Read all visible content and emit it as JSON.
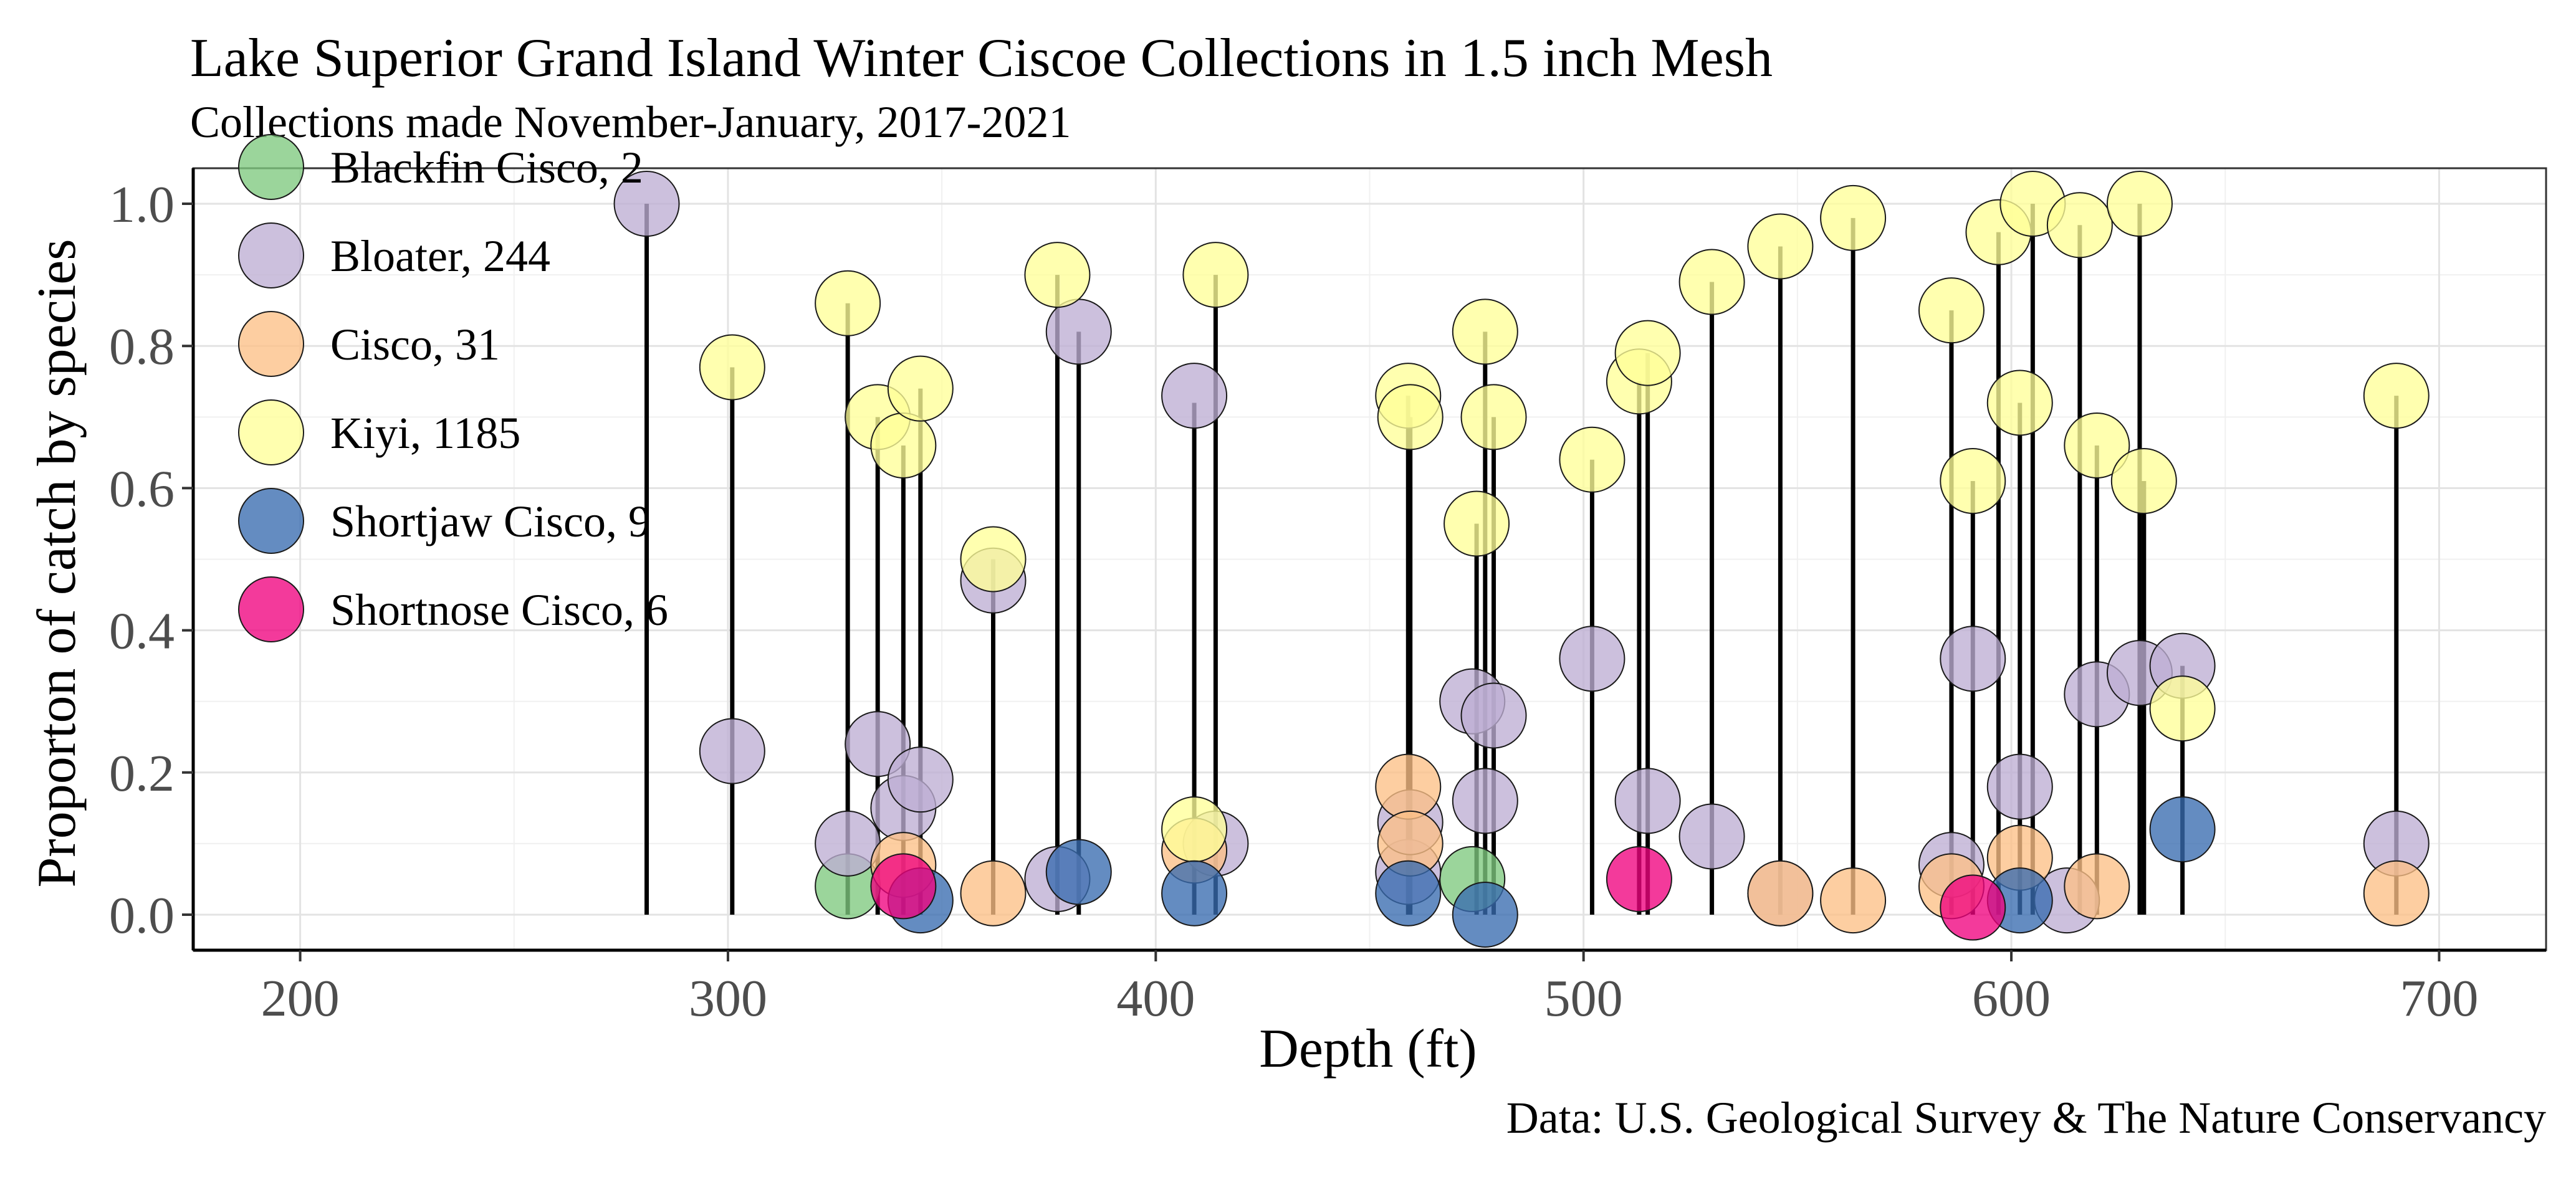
{
  "chart_data": {
    "type": "scatter",
    "title": "Lake Superior Grand Island Winter Ciscoe Collections in 1.5 inch Mesh",
    "subtitle": "Collections made November-January, 2017-2021",
    "xlabel": "Depth (ft)",
    "ylabel": "Proporton of catch by species",
    "caption": "Data: U.S. Geological Survey & The Nature Conservancy",
    "xlim": [
      175,
      725
    ],
    "ylim": [
      -0.05,
      1.05
    ],
    "x_ticks": [
      200,
      300,
      400,
      500,
      600,
      700
    ],
    "x_tick_labels": [
      "200",
      "300",
      "400",
      "500",
      "600",
      "700"
    ],
    "y_ticks": [
      0.0,
      0.2,
      0.4,
      0.6,
      0.8,
      1.0
    ],
    "y_tick_labels": [
      "0.0",
      "0.2",
      "0.4",
      "0.6",
      "0.8",
      "1.0"
    ],
    "grid": true,
    "legend_position": "top-left",
    "legend": [
      {
        "label": "Blackfin Cisco, 2",
        "color": "#7fc97f"
      },
      {
        "label": "Bloater, 244",
        "color": "#beaed4"
      },
      {
        "label": "Cisco, 31",
        "color": "#fdc086"
      },
      {
        "label": "Kiyi, 1185",
        "color": "#ffff99"
      },
      {
        "label": "Shortjaw Cisco, 9",
        "color": "#386cb0"
      },
      {
        "label": "Shortnose Cisco, 6",
        "color": "#f0027f"
      }
    ],
    "stems": [
      {
        "x": 281,
        "top": 1.0
      },
      {
        "x": 301,
        "top": 0.77
      },
      {
        "x": 328,
        "top": 0.86
      },
      {
        "x": 335,
        "top": 0.7
      },
      {
        "x": 341,
        "top": 0.66
      },
      {
        "x": 345,
        "top": 0.74
      },
      {
        "x": 362,
        "top": 0.5
      },
      {
        "x": 377,
        "top": 0.9
      },
      {
        "x": 382,
        "top": 0.82
      },
      {
        "x": 409,
        "top": 0.72
      },
      {
        "x": 414,
        "top": 0.9
      },
      {
        "x": 459,
        "top": 0.73
      },
      {
        "x": 459.5,
        "top": 0.7
      },
      {
        "x": 475,
        "top": 0.55
      },
      {
        "x": 477,
        "top": 0.82
      },
      {
        "x": 479,
        "top": 0.7
      },
      {
        "x": 502,
        "top": 0.64
      },
      {
        "x": 513,
        "top": 0.75
      },
      {
        "x": 515,
        "top": 0.79
      },
      {
        "x": 530,
        "top": 0.89
      },
      {
        "x": 546,
        "top": 0.94
      },
      {
        "x": 563,
        "top": 0.98
      },
      {
        "x": 586,
        "top": 0.85
      },
      {
        "x": 591,
        "top": 0.61
      },
      {
        "x": 597,
        "top": 0.96
      },
      {
        "x": 602,
        "top": 0.72
      },
      {
        "x": 605,
        "top": 1.0
      },
      {
        "x": 616,
        "top": 0.97
      },
      {
        "x": 620,
        "top": 0.66
      },
      {
        "x": 630,
        "top": 1.0
      },
      {
        "x": 631,
        "top": 0.61
      },
      {
        "x": 640,
        "top": 0.35
      },
      {
        "x": 690,
        "top": 0.73
      }
    ],
    "series": [
      {
        "name": "Blackfin Cisco, 2",
        "color": "#7fc97f",
        "points": [
          [
            328,
            0.04
          ],
          [
            474,
            0.05
          ]
        ]
      },
      {
        "name": "Bloater, 244",
        "color": "#beaed4",
        "points": [
          [
            281,
            1.0
          ],
          [
            301,
            0.23
          ],
          [
            328,
            0.1
          ],
          [
            335,
            0.24
          ],
          [
            341,
            0.15
          ],
          [
            345,
            0.19
          ],
          [
            362,
            0.47
          ],
          [
            377,
            0.05
          ],
          [
            382,
            0.82
          ],
          [
            409,
            0.73
          ],
          [
            414,
            0.1
          ],
          [
            459,
            0.06
          ],
          [
            459.5,
            0.13
          ],
          [
            474,
            0.3
          ],
          [
            477,
            0.16
          ],
          [
            479,
            0.28
          ],
          [
            502,
            0.36
          ],
          [
            515,
            0.16
          ],
          [
            530,
            0.11
          ],
          [
            546,
            0.03
          ],
          [
            586,
            0.07
          ],
          [
            591,
            0.36
          ],
          [
            602,
            0.18
          ],
          [
            613,
            0.02
          ],
          [
            620,
            0.31
          ],
          [
            630,
            0.34
          ],
          [
            640,
            0.35
          ],
          [
            690,
            0.1
          ]
        ]
      },
      {
        "name": "Cisco, 31",
        "color": "#fdc086",
        "points": [
          [
            341,
            0.07
          ],
          [
            362,
            0.03
          ],
          [
            409,
            0.09
          ],
          [
            459,
            0.18
          ],
          [
            459.5,
            0.1
          ],
          [
            546,
            0.03
          ],
          [
            563,
            0.02
          ],
          [
            586,
            0.04
          ],
          [
            602,
            0.08
          ],
          [
            620,
            0.04
          ],
          [
            690,
            0.03
          ]
        ]
      },
      {
        "name": "Kiyi, 1185",
        "color": "#ffff99",
        "points": [
          [
            301,
            0.77
          ],
          [
            328,
            0.86
          ],
          [
            335,
            0.7
          ],
          [
            341,
            0.66
          ],
          [
            345,
            0.74
          ],
          [
            362,
            0.5
          ],
          [
            377,
            0.9
          ],
          [
            409,
            0.12
          ],
          [
            414,
            0.9
          ],
          [
            459,
            0.73
          ],
          [
            459.5,
            0.7
          ],
          [
            475,
            0.55
          ],
          [
            477,
            0.82
          ],
          [
            479,
            0.7
          ],
          [
            502,
            0.64
          ],
          [
            513,
            0.75
          ],
          [
            515,
            0.79
          ],
          [
            530,
            0.89
          ],
          [
            546,
            0.94
          ],
          [
            563,
            0.98
          ],
          [
            586,
            0.85
          ],
          [
            591,
            0.61
          ],
          [
            597,
            0.96
          ],
          [
            602,
            0.72
          ],
          [
            605,
            1.0
          ],
          [
            616,
            0.97
          ],
          [
            620,
            0.66
          ],
          [
            630,
            1.0
          ],
          [
            631,
            0.61
          ],
          [
            640,
            0.29
          ],
          [
            690,
            0.73
          ]
        ]
      },
      {
        "name": "Shortjaw Cisco, 9",
        "color": "#386cb0",
        "points": [
          [
            345,
            0.02
          ],
          [
            382,
            0.06
          ],
          [
            409,
            0.03
          ],
          [
            459,
            0.03
          ],
          [
            477,
            0.0
          ],
          [
            602,
            0.02
          ],
          [
            640,
            0.12
          ]
        ]
      },
      {
        "name": "Shortnose Cisco, 6",
        "color": "#f0027f",
        "points": [
          [
            341,
            0.04
          ],
          [
            513,
            0.05
          ],
          [
            591,
            0.01
          ]
        ]
      }
    ]
  }
}
